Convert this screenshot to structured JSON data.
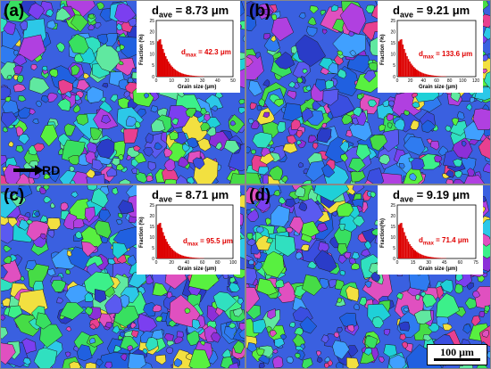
{
  "panels": [
    {
      "label": "(a)",
      "dave_main": "d",
      "dave_sub": "ave",
      "dave_val": " = 8.73 μm",
      "dmax_main": "d",
      "dmax_sub": "max",
      "dmax_val": " = 42.3 μm",
      "ylabel": "Fraction (%)",
      "xlabel": "Grain size (μm)",
      "yticks": [
        "0",
        "5",
        "10",
        "15",
        "20",
        "25"
      ],
      "xticks": [
        "0",
        "10",
        "20",
        "30",
        "40",
        "50"
      ]
    },
    {
      "label": "(b)",
      "dave_main": "d",
      "dave_sub": "ave",
      "dave_val": " = 9.21 μm",
      "dmax_main": "d",
      "dmax_sub": "max",
      "dmax_val": " = 133.6 μm",
      "ylabel": "Fraction (%)",
      "xlabel": "Grain size (μm)",
      "yticks": [
        "0",
        "5",
        "10",
        "15",
        "20",
        "25"
      ],
      "xticks": [
        "0",
        "20",
        "40",
        "60",
        "80",
        "100",
        "120"
      ]
    },
    {
      "label": "(c)",
      "dave_main": "d",
      "dave_sub": "ave",
      "dave_val": " = 8.71 μm",
      "dmax_main": "d",
      "dmax_sub": "max",
      "dmax_val": " = 95.5 μm",
      "ylabel": "Fraction (%)",
      "xlabel": "Grain size (μm)",
      "yticks": [
        "0",
        "5",
        "10",
        "15",
        "20",
        "25"
      ],
      "xticks": [
        "0",
        "20",
        "40",
        "60",
        "80",
        "100"
      ]
    },
    {
      "label": "(d)",
      "dave_main": "d",
      "dave_sub": "ave",
      "dave_val": " = 9.19 μm",
      "dmax_main": "d",
      "dmax_sub": "max",
      "dmax_val": " = 71.4 μm",
      "ylabel": "Fraction(%)",
      "xlabel": "Grain size (μm)",
      "yticks": [
        "0",
        "5",
        "10",
        "15",
        "20",
        "25"
      ],
      "xticks": [
        "0",
        "15",
        "30",
        "45",
        "60",
        "75"
      ]
    }
  ],
  "rd_label": "RD",
  "scale_bar": "100 μm",
  "colors": {
    "dmax_text": "#e00000",
    "histogram_bars": "#dd0000"
  }
}
